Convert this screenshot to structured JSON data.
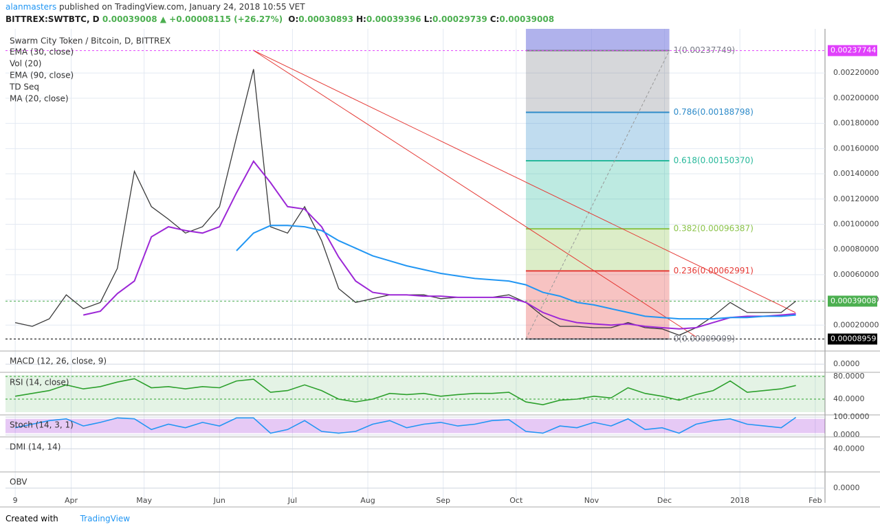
{
  "header": {
    "author": "alanmasters",
    "published": "published on TradingView.com, January 24, 2018 10:55 VET",
    "symbol": "BITTREX:SWTBTC, D",
    "last": "0.00039008",
    "change": "▲ +0.00008115 (+26.27%)",
    "ohlc": [
      {
        "key": "O:",
        "value": "0.00030893"
      },
      {
        "key": "H:",
        "value": "0.00039396"
      },
      {
        "key": "L:",
        "value": "0.00029739"
      },
      {
        "key": "C:",
        "value": "0.00039008"
      }
    ]
  },
  "chart_data": {
    "type": "line",
    "title": "Swarm City Token / Bitcoin, D, BITTREX",
    "studies": [
      "Vol (20)",
      "TD Seq",
      "MA (20, close)"
    ],
    "x": [
      0,
      7,
      14,
      21,
      28,
      35,
      42,
      49,
      56,
      63,
      70,
      77,
      84,
      91,
      98,
      105,
      112,
      119,
      126,
      133,
      140,
      147,
      154,
      161,
      168,
      175,
      182,
      189,
      196,
      203,
      210,
      217,
      224,
      231,
      238,
      245,
      252,
      259,
      266,
      273,
      280,
      287,
      294,
      301,
      308,
      315,
      321
    ],
    "xlim": [
      -4,
      333
    ],
    "xticks": [
      {
        "value": 0,
        "label": "9"
      },
      {
        "value": 23,
        "label": "Apr"
      },
      {
        "value": 53,
        "label": "May"
      },
      {
        "value": 84,
        "label": "Jun"
      },
      {
        "value": 114,
        "label": "Jul"
      },
      {
        "value": 145,
        "label": "Aug"
      },
      {
        "value": 176,
        "label": "Sep"
      },
      {
        "value": 206,
        "label": "Oct"
      },
      {
        "value": 237,
        "label": "Nov"
      },
      {
        "value": 267,
        "label": "Dec"
      },
      {
        "value": 298,
        "label": "2018"
      },
      {
        "value": 329,
        "label": "Feb"
      }
    ],
    "ylim": [
      0,
      0.00255
    ],
    "yticks": [
      {
        "value": 0.0002,
        "label": "0.00020000"
      },
      {
        "value": 0.0004,
        "label": "0.00040000"
      },
      {
        "value": 0.0006,
        "label": "0.00060000"
      },
      {
        "value": 0.0008,
        "label": "0.00080000"
      },
      {
        "value": 0.001,
        "label": "0.00100000"
      },
      {
        "value": 0.0012,
        "label": "0.00120000"
      },
      {
        "value": 0.0014,
        "label": "0.00140000"
      },
      {
        "value": 0.0016,
        "label": "0.00160000"
      },
      {
        "value": 0.0018,
        "label": "0.00180000"
      },
      {
        "value": 0.002,
        "label": "0.00200000"
      },
      {
        "value": 0.0022,
        "label": "0.00220000"
      }
    ],
    "grid": true,
    "series": [
      {
        "color": "#3a3a3a",
        "values": [
          0.00022,
          0.00019,
          0.00025,
          0.00044,
          0.00033,
          0.00038,
          0.00065,
          0.00142,
          0.00114,
          0.00104,
          0.00093,
          0.00098,
          0.00114,
          0.00169,
          0.00223,
          0.00098,
          0.00093,
          0.00114,
          0.00087,
          0.00049,
          0.00038,
          0.00041,
          0.00044,
          0.00044,
          0.00044,
          0.00041,
          0.00042,
          0.00042,
          0.00042,
          0.00044,
          0.00038,
          0.00027,
          0.00019,
          0.00019,
          0.00018,
          0.00018,
          0.00022,
          0.00018,
          0.00017,
          0.00012,
          0.00018,
          0.00027,
          0.00038,
          0.0003,
          0.0003,
          0.0003,
          0.00039008
        ]
      },
      {
        "name": "EMA (30, close)",
        "color": "#9c27d6",
        "values": [
          null,
          null,
          null,
          null,
          0.00028,
          0.00031,
          0.00045,
          0.00055,
          0.0009,
          0.00098,
          0.00095,
          0.00093,
          0.00098,
          0.00125,
          0.0015,
          0.00133,
          0.00114,
          0.00112,
          0.00098,
          0.00074,
          0.00055,
          0.00046,
          0.00044,
          0.00044,
          0.00043,
          0.00043,
          0.00042,
          0.00042,
          0.00042,
          0.00042,
          0.00038,
          0.0003,
          0.00025,
          0.00022,
          0.00021,
          0.0002,
          0.00021,
          0.00019,
          0.00018,
          0.00017,
          0.00018,
          0.00022,
          0.00026,
          0.00027,
          0.00027,
          0.00028,
          0.00029
        ]
      },
      {
        "name": "EMA (90, close)",
        "color": "#2196f3",
        "values": [
          null,
          null,
          null,
          null,
          null,
          null,
          null,
          null,
          null,
          null,
          null,
          null,
          null,
          0.00079,
          0.00093,
          0.00099,
          0.00099,
          0.00098,
          0.00095,
          0.00087,
          0.00081,
          0.00075,
          0.00071,
          0.00067,
          0.00064,
          0.00061,
          0.00059,
          0.00057,
          0.00056,
          0.00055,
          0.00052,
          0.00046,
          0.00043,
          0.00038,
          0.00036,
          0.00033,
          0.0003,
          0.00027,
          0.00026,
          0.00025,
          0.00025,
          0.00025,
          0.00026,
          0.00026,
          0.00027,
          0.00027,
          0.00028
        ]
      }
    ],
    "price_labels": [
      {
        "value": 0.00237744,
        "label": "0.00237744",
        "color": "#e040fb"
      },
      {
        "value": 0.00039008,
        "label": "0.00039008",
        "color": "#4caf50"
      },
      {
        "value": 8.959e-05,
        "label": "0.00008959",
        "color": "#000000"
      }
    ],
    "fib": {
      "x_range": [
        210,
        269
      ],
      "levels": [
        {
          "value": 0.00237749,
          "label": "1(0.00237749)",
          "color": "#787b86"
        },
        {
          "value": 0.00188798,
          "label": "0.786(0.00188798)",
          "color": "#2e8bc9"
        },
        {
          "value": 0.0015037,
          "label": "0.618(0.00150370)",
          "color": "#26b89a"
        },
        {
          "value": 0.00096387,
          "label": "0.382(0.00096387)",
          "color": "#8bc34a"
        },
        {
          "value": 0.00062991,
          "label": "0.236(0.00062991)",
          "color": "#e53935"
        },
        {
          "value": 9.009e-05,
          "label": "0(0.00009009)",
          "color": "#787b86"
        }
      ]
    },
    "panes": [
      {
        "title": "MACD (12, 26, close, 9)",
        "ylim": [
          -0.6,
          1
        ],
        "yticks": [
          {
            "value": 0,
            "label": "0.0000"
          }
        ]
      },
      {
        "title": "RSI (14, close)",
        "ylim": [
          13.3,
          86
        ],
        "yticks": [
          {
            "value": 80,
            "label": "80.0000"
          },
          {
            "value": 40,
            "label": "40.0000"
          }
        ],
        "color": "#2ca02c",
        "values": [
          45,
          50,
          55,
          65,
          58,
          62,
          70,
          76,
          60,
          62,
          58,
          62,
          60,
          72,
          75,
          52,
          55,
          65,
          55,
          40,
          35,
          40,
          50,
          48,
          50,
          45,
          48,
          50,
          50,
          52,
          35,
          30,
          38,
          40,
          45,
          42,
          60,
          50,
          45,
          38,
          48,
          55,
          72,
          52,
          55,
          58,
          64
        ]
      },
      {
        "title": "Stoch (14, 3, 1)",
        "ylim": [
          -7,
          108
        ],
        "yticks": [
          {
            "value": 100,
            "label": "100.0000"
          },
          {
            "value": 0,
            "label": "0.0000"
          }
        ],
        "color": "#2196f3",
        "values": [
          40,
          60,
          80,
          90,
          50,
          70,
          95,
          90,
          30,
          60,
          40,
          70,
          50,
          95,
          95,
          10,
          30,
          80,
          20,
          10,
          20,
          60,
          80,
          40,
          60,
          70,
          50,
          60,
          80,
          85,
          20,
          10,
          50,
          40,
          70,
          50,
          90,
          30,
          40,
          10,
          60,
          80,
          90,
          60,
          50,
          40,
          98
        ]
      },
      {
        "title": "DMI (14, 14)",
        "ylim": [
          0,
          60
        ],
        "yticks": [
          {
            "value": 40,
            "label": "40.0000"
          }
        ]
      },
      {
        "title": "OBV",
        "ylim": [
          -1,
          1
        ],
        "yticks": [
          {
            "value": 0,
            "label": "0.0000"
          }
        ]
      }
    ]
  },
  "footer": {
    "created": "Created with",
    "brand": "TradingView"
  }
}
